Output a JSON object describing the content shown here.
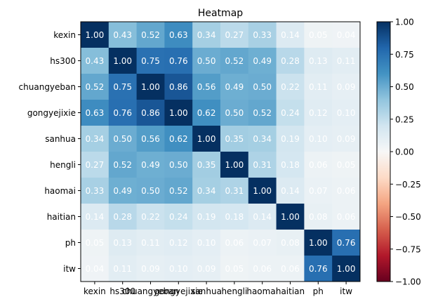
{
  "chart_data": {
    "type": "heatmap",
    "title": "Heatmap",
    "xlabel": "",
    "ylabel": "",
    "labels": [
      "kexin",
      "hs300",
      "chuangyeban",
      "gongyejixie",
      "sanhua",
      "hengli",
      "haomai",
      "haitian",
      "ph",
      "itw"
    ],
    "matrix": [
      [
        1.0,
        0.43,
        0.52,
        0.63,
        0.34,
        0.27,
        0.33,
        0.14,
        0.05,
        0.04
      ],
      [
        0.43,
        1.0,
        0.75,
        0.76,
        0.5,
        0.52,
        0.49,
        0.28,
        0.13,
        0.11
      ],
      [
        0.52,
        0.75,
        1.0,
        0.86,
        0.56,
        0.49,
        0.5,
        0.22,
        0.11,
        0.09
      ],
      [
        0.63,
        0.76,
        0.86,
        1.0,
        0.62,
        0.5,
        0.52,
        0.24,
        0.12,
        0.1
      ],
      [
        0.34,
        0.5,
        0.56,
        0.62,
        1.0,
        0.35,
        0.34,
        0.19,
        0.1,
        0.09
      ],
      [
        0.27,
        0.52,
        0.49,
        0.5,
        0.35,
        1.0,
        0.31,
        0.18,
        0.06,
        0.05
      ],
      [
        0.33,
        0.49,
        0.5,
        0.52,
        0.34,
        0.31,
        1.0,
        0.14,
        0.07,
        0.06
      ],
      [
        0.14,
        0.28,
        0.22,
        0.24,
        0.19,
        0.18,
        0.14,
        1.0,
        0.08,
        0.06
      ],
      [
        0.05,
        0.13,
        0.11,
        0.12,
        0.1,
        0.06,
        0.07,
        0.08,
        1.0,
        0.76
      ],
      [
        0.04,
        0.11,
        0.09,
        0.1,
        0.09,
        0.05,
        0.06,
        0.06,
        0.76,
        1.0
      ]
    ],
    "colormap": "RdBu",
    "vmin": -1.0,
    "vmax": 1.0,
    "colorbar_ticks": [
      "1.00",
      "0.75",
      "0.50",
      "0.25",
      "0.00",
      "−0.25",
      "−0.50",
      "−0.75",
      "−1.00"
    ],
    "colorbar_tick_values": [
      1.0,
      0.75,
      0.5,
      0.25,
      0.0,
      -0.25,
      -0.5,
      -0.75,
      -1.0
    ],
    "value_format": "2 decimals"
  }
}
